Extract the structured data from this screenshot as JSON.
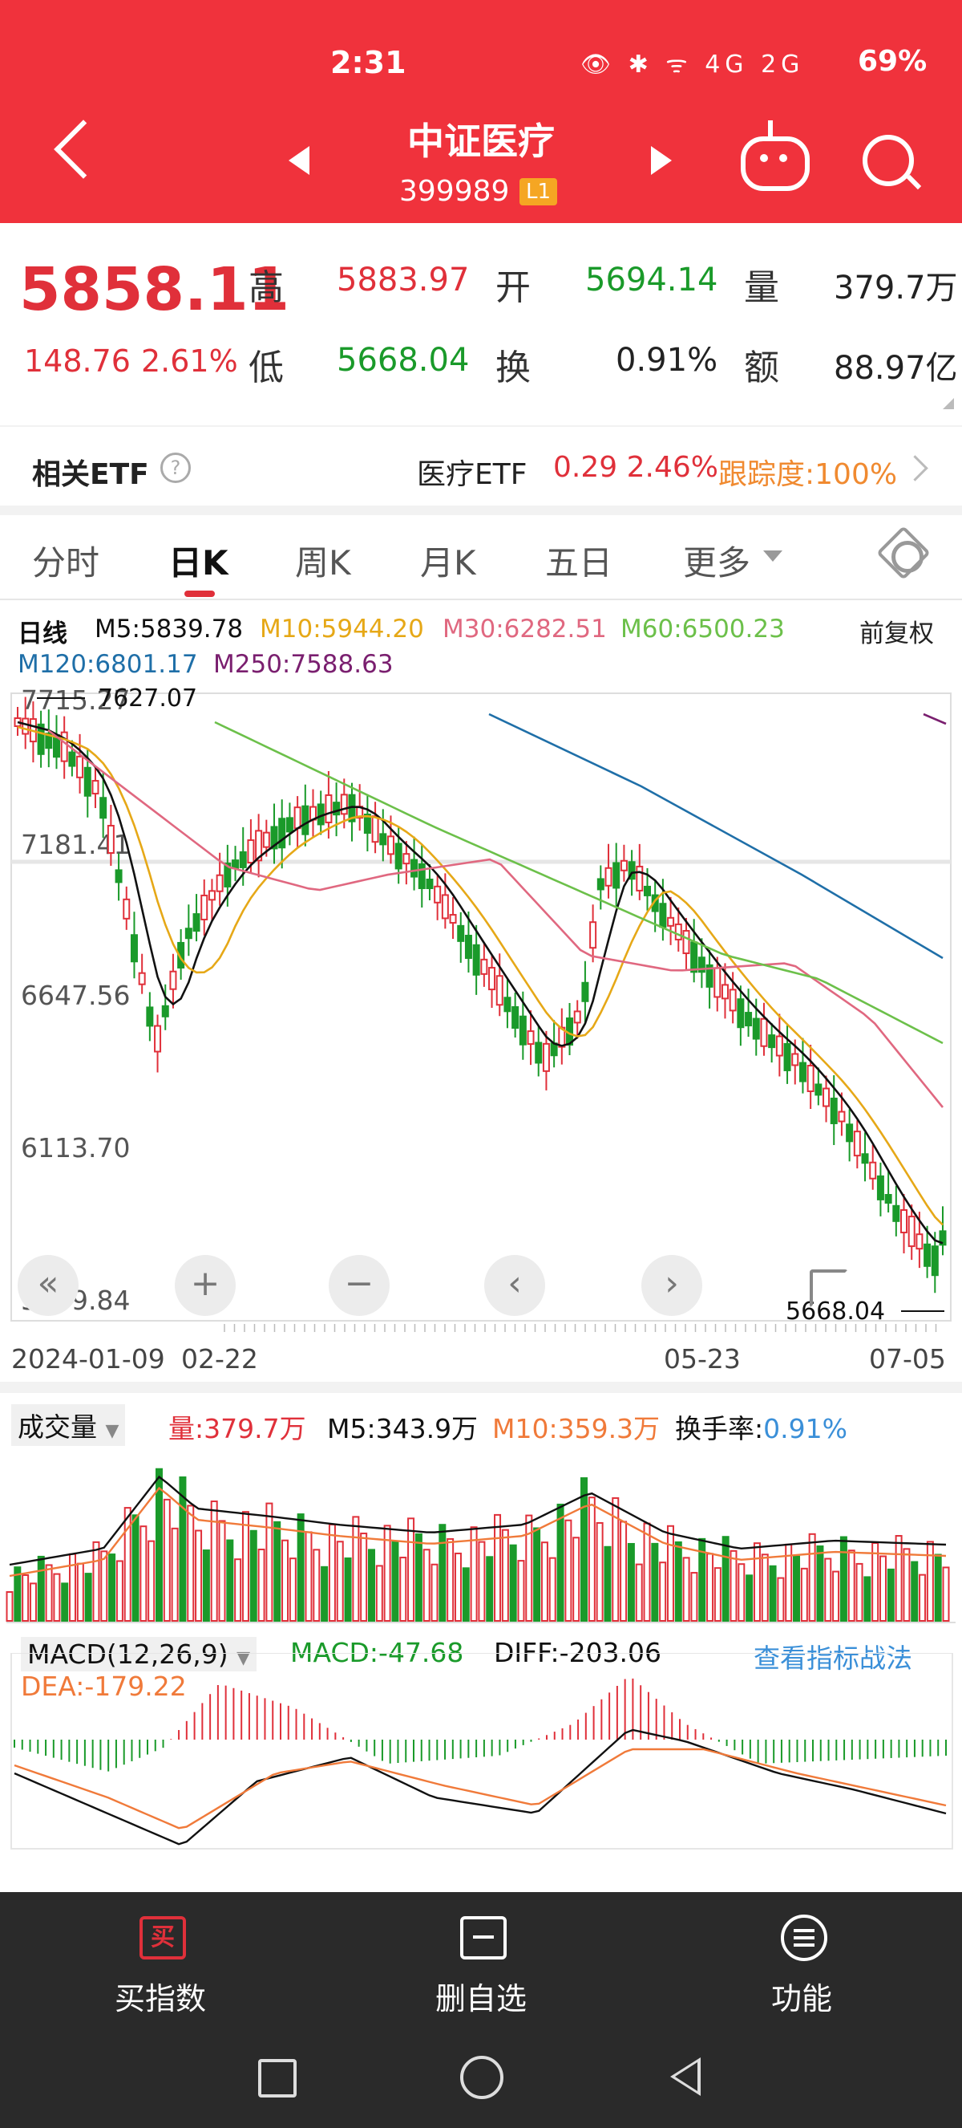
{
  "status_bar": {
    "time": "2:31",
    "icons": "👁 ✱ ᯤ 4G 2G",
    "battery": "69%"
  },
  "header": {
    "title": "中证医疗",
    "code": "399989",
    "badge": "L1"
  },
  "quote": {
    "price": "5858.11",
    "change": "148.76",
    "change_pct": "2.61%",
    "high_label": "高",
    "high": "5883.97",
    "low_label": "低",
    "low": "5668.04",
    "open_label": "开",
    "open": "5694.14",
    "turnover_label": "换",
    "turnover": "0.91%",
    "volume_label": "量",
    "volume": "379.7万",
    "amount_label": "额",
    "amount": "88.97亿"
  },
  "etf": {
    "label": "相关ETF",
    "help": "?",
    "name": "医疗ETF",
    "value": "0.29  2.46%",
    "tracking": "跟踪度:100%"
  },
  "tabs": [
    "分时",
    "日K",
    "周K",
    "月K",
    "五日",
    "更多"
  ],
  "active_tab": "日K",
  "ma": {
    "title": "日线",
    "m5": "M5:5839.78",
    "m10": "M10:5944.20",
    "m30": "M30:6282.51",
    "m60": "M60:6500.23",
    "adjust": "前复权",
    "m120": "M120:6801.17",
    "m250": "M250:7588.63"
  },
  "colors": {
    "up": "#e0303a",
    "down": "#1a9a2a",
    "m5": "#111111",
    "m10": "#e6a817",
    "m30": "#e06880",
    "m60": "#6cc04a",
    "m120": "#1f6fa8",
    "m250": "#7a1f6f",
    "vol_ma10": "#f07a3a",
    "dea": "#f07a3a",
    "link": "#3a8fd8"
  },
  "kline": {
    "y_labels": [
      "7715.27",
      "7181.41",
      "6647.56",
      "6113.70",
      "5579.84"
    ],
    "max_label": "7627.07",
    "min_label": "5668.04",
    "dates": [
      "2024-01-09",
      "02-22",
      "05-23",
      "07-05"
    ]
  },
  "controls": [
    "«",
    "+",
    "−",
    "‹",
    "›"
  ],
  "volume": {
    "title": "成交量",
    "vol": "量:379.7万",
    "m5": "M5:343.9万",
    "m10": "M10:359.3万",
    "turnover_label": "换手率:",
    "turnover": "0.91%"
  },
  "macd": {
    "title": "MACD(12,26,9)",
    "macd": "MACD:-47.68",
    "diff": "DIFF:-203.06",
    "dea": "DEA:-179.22",
    "link": "查看指标战法"
  },
  "bottom_bar": {
    "buy": "买指数",
    "buy_icon": "买",
    "remove": "删自选",
    "func": "功能"
  }
}
